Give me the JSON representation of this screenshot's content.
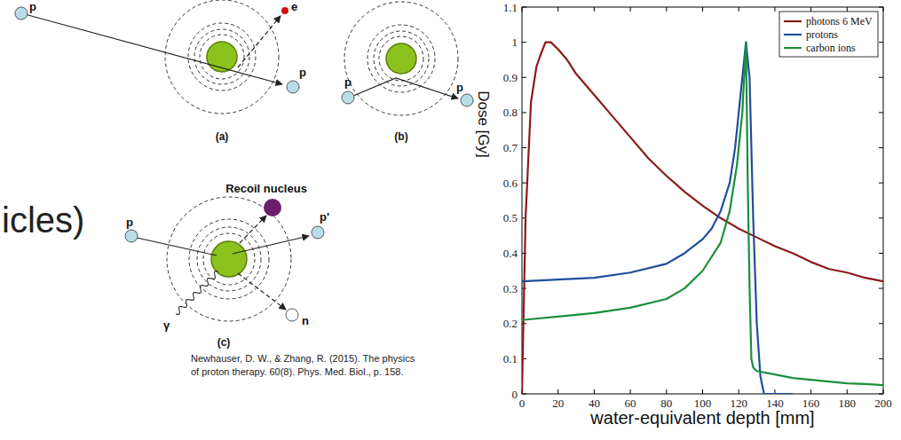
{
  "chart_data": {
    "type": "line",
    "xlabel": "water-equivalent depth [mm]",
    "ylabel": "Dose [Gy]",
    "xlim": [
      0,
      200
    ],
    "ylim": [
      0,
      1.1
    ],
    "xticks": [
      0,
      20,
      40,
      60,
      80,
      100,
      120,
      140,
      160,
      180,
      200
    ],
    "yticks": [
      0,
      0.1,
      0.2,
      0.3,
      0.4,
      0.5,
      0.6,
      0.7,
      0.8,
      0.9,
      1,
      1.1
    ],
    "legend": "upper right",
    "grid": false,
    "series": [
      {
        "name": "photons 6 MeV",
        "color": "#8b1a1a",
        "x": [
          0,
          2,
          5,
          8,
          10,
          13,
          16,
          20,
          25,
          30,
          40,
          50,
          60,
          70,
          80,
          90,
          100,
          110,
          120,
          130,
          140,
          150,
          160,
          170,
          180,
          190,
          200
        ],
        "values": [
          0,
          0.5,
          0.83,
          0.93,
          0.96,
          1.0,
          1.0,
          0.98,
          0.95,
          0.91,
          0.85,
          0.79,
          0.73,
          0.67,
          0.62,
          0.575,
          0.535,
          0.5,
          0.47,
          0.445,
          0.42,
          0.4,
          0.375,
          0.355,
          0.345,
          0.33,
          0.32
        ]
      },
      {
        "name": "protons",
        "color": "#1f4e9c",
        "x": [
          0,
          20,
          40,
          60,
          80,
          90,
          100,
          105,
          110,
          115,
          118,
          120,
          122,
          124,
          126,
          128,
          130,
          132,
          134,
          150
        ],
        "values": [
          0.32,
          0.325,
          0.33,
          0.345,
          0.37,
          0.4,
          0.44,
          0.47,
          0.52,
          0.6,
          0.7,
          0.8,
          0.9,
          1.0,
          0.9,
          0.5,
          0.2,
          0.05,
          0,
          0
        ]
      },
      {
        "name": "carbon ions",
        "color": "#1a8f3c",
        "x": [
          0,
          20,
          40,
          60,
          80,
          90,
          100,
          110,
          115,
          119,
          122,
          124,
          125,
          126,
          127,
          128,
          130,
          140,
          150,
          160,
          170,
          180,
          190,
          200
        ],
        "values": [
          0.21,
          0.22,
          0.23,
          0.245,
          0.27,
          0.3,
          0.35,
          0.43,
          0.52,
          0.65,
          0.8,
          1.0,
          0.6,
          0.3,
          0.1,
          0.075,
          0.065,
          0.055,
          0.045,
          0.04,
          0.035,
          0.03,
          0.028,
          0.025
        ]
      }
    ]
  },
  "diagram": {
    "heading_fragment": "icles)",
    "panels": [
      {
        "label": "(a)",
        "particle_labels": [
          "p",
          "p",
          "e"
        ]
      },
      {
        "label": "(b)",
        "particle_labels": [
          "p",
          "p"
        ]
      },
      {
        "label": "(c)",
        "particle_labels": [
          "p",
          "p'",
          "n",
          "γ"
        ],
        "recoil_label": "Recoil nucleus"
      }
    ],
    "citation": [
      "Newhauser, D. W., & Zhang, R. (2015). The physics",
      "of proton therapy. 60(8). Phys. Med. Biol., p. 158."
    ]
  }
}
